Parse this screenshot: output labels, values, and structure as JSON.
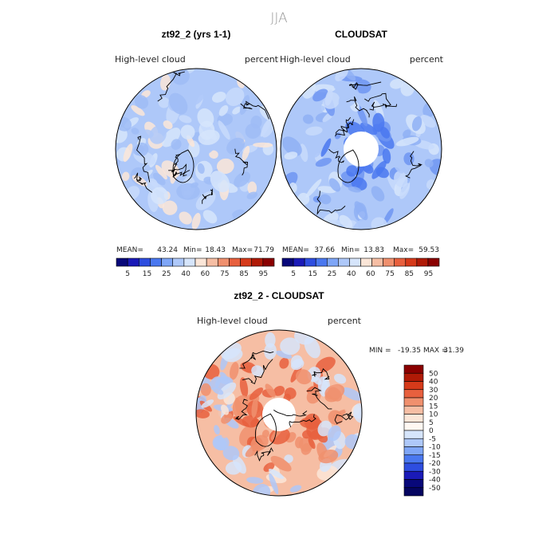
{
  "figure": {
    "season_title": "JJA"
  },
  "chart_data": [
    {
      "type": "heatmap",
      "title": "zt92_2 (yrs 1-1)",
      "variable": "High-level cloud",
      "units": "percent",
      "projection": "north-polar-stereographic",
      "stats": {
        "mean_label": "MEAN=",
        "mean": "43.24",
        "min_label": "Min=",
        "min": "18.43",
        "max_label": "Max=",
        "max": "71.79"
      },
      "colorbar": {
        "levels": [
          "5",
          "15",
          "25",
          "40",
          "60",
          "75",
          "85",
          "95"
        ],
        "colors": [
          "#08087a",
          "#1a1ab8",
          "#2e4ee0",
          "#4a78f0",
          "#7fa6f7",
          "#aec8f9",
          "#d6e5fb",
          "#fbe6d8",
          "#f6bea4",
          "#f0906e",
          "#e8603e",
          "#d63a1a",
          "#b01a06",
          "#8a0000"
        ]
      },
      "field_palette": [
        "#aec8f9",
        "#c8dafb",
        "#d6e5fb",
        "#9fbcf6",
        "#fbe6d8"
      ]
    },
    {
      "type": "heatmap",
      "title": "CLOUDSAT",
      "variable": "High-level cloud",
      "units": "percent",
      "projection": "north-polar-stereographic",
      "stats": {
        "mean_label": "MEAN=",
        "mean": "37.66",
        "min_label": "Min=",
        "min": "13.83",
        "max_label": "Max=",
        "max": "59.53"
      },
      "colorbar": {
        "levels": [
          "5",
          "15",
          "25",
          "40",
          "60",
          "75",
          "85",
          "95"
        ],
        "colors": [
          "#08087a",
          "#1a1ab8",
          "#2e4ee0",
          "#4a78f0",
          "#7fa6f7",
          "#aec8f9",
          "#d6e5fb",
          "#fbe6d8",
          "#f6bea4",
          "#f0906e",
          "#e8603e",
          "#d63a1a",
          "#b01a06",
          "#8a0000"
        ]
      },
      "field_palette": [
        "#aec8f9",
        "#8fb0f5",
        "#c8dafb",
        "#6f95f2",
        "#d6e5fb"
      ]
    },
    {
      "type": "heatmap",
      "title": "zt92_2 - CLOUDSAT",
      "variable": "High-level cloud",
      "units": "percent",
      "projection": "north-polar-stereographic",
      "stats": {
        "min_label": "MIN =",
        "min": "-19.35",
        "max_label": "MAX =",
        "max": "31.39"
      },
      "colorbar": {
        "levels": [
          "50",
          "40",
          "30",
          "20",
          "15",
          "10",
          "5",
          "0",
          "-5",
          "-10",
          "-15",
          "-20",
          "-30",
          "-40",
          "-50"
        ],
        "colors": [
          "#8a0000",
          "#b01a06",
          "#d63a1a",
          "#e8603e",
          "#f0906e",
          "#f6bea4",
          "#fbe6d8",
          "#fff8f2",
          "#d6e5fb",
          "#aec8f9",
          "#7fa6f7",
          "#4a78f0",
          "#2e4ee0",
          "#1a1ab8",
          "#08087a",
          "#050560"
        ]
      },
      "field_palette": [
        "#f6bea4",
        "#f0906e",
        "#e8603e",
        "#d6e5fb",
        "#aec8f9",
        "#fbe6d8"
      ]
    }
  ]
}
